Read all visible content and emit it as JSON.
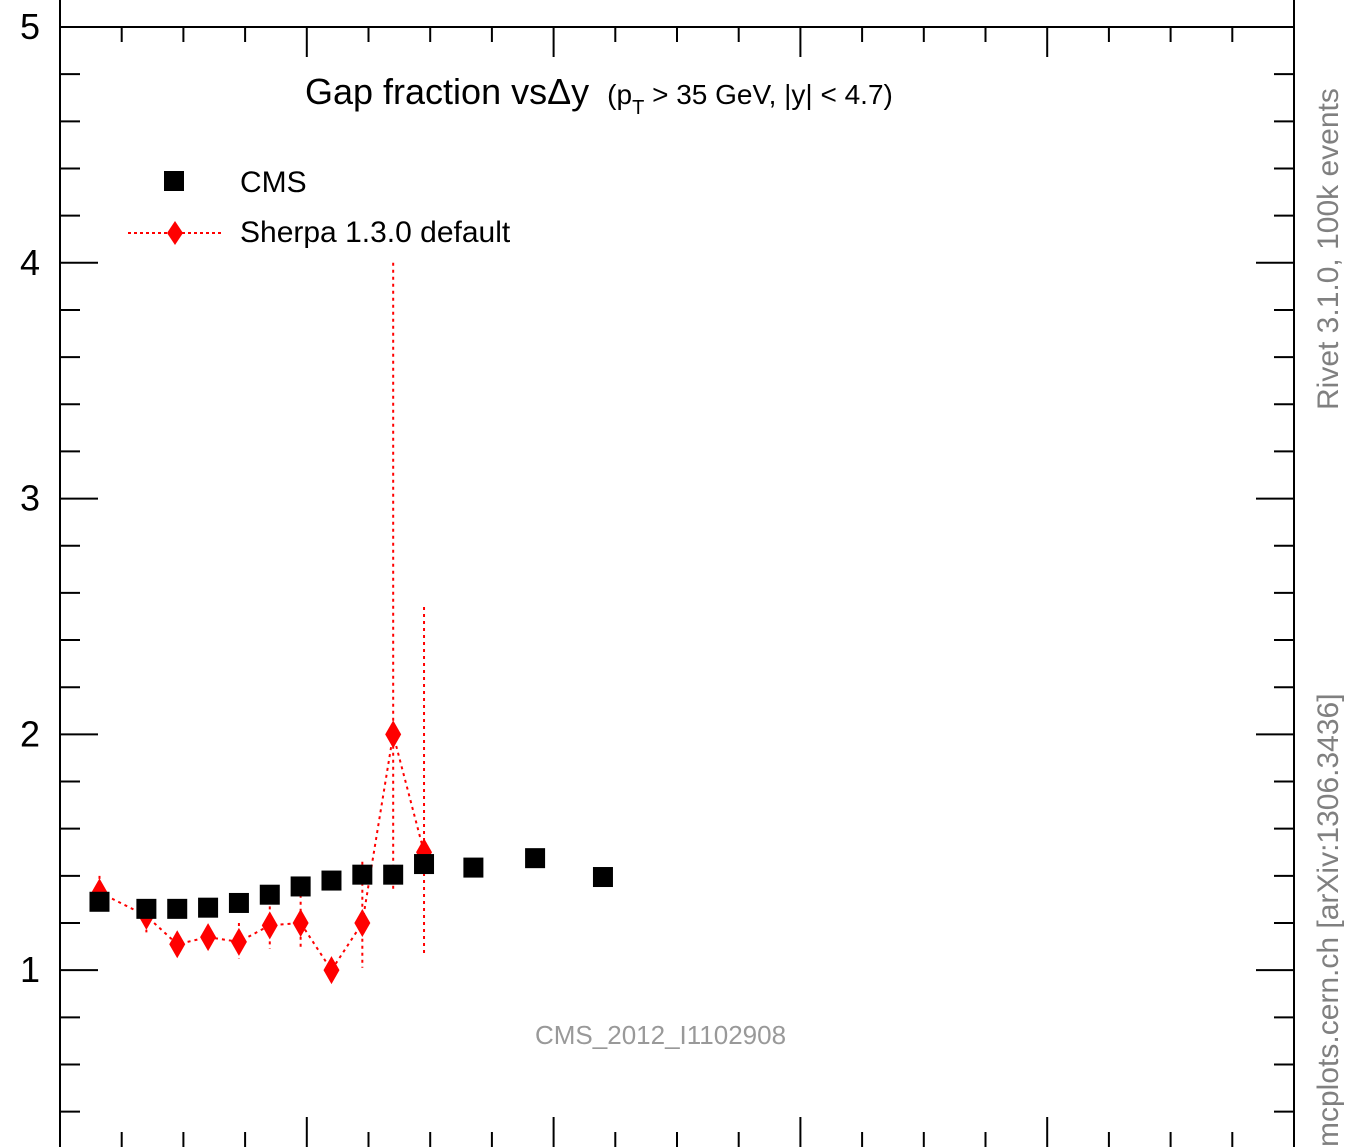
{
  "chart_data": {
    "type": "scatter",
    "title_main": "Gap fraction vs",
    "title_delta_y": "Δy",
    "title_kin_open": "(p",
    "title_kin_sub": "T",
    "title_kin_rest": " > 35 GeV, |y| < 4.7)",
    "ylim": [
      0.25,
      5.0
    ],
    "xlim": [
      0.0,
      10.0
    ],
    "yticks_major": [
      1,
      2,
      3,
      4,
      5
    ],
    "ytick_labels": [
      "1",
      "2",
      "3",
      "4",
      "5"
    ],
    "legend_placement": "top-left",
    "grid": false,
    "series": [
      {
        "name": "CMS",
        "marker": "square",
        "color": "#000000",
        "points": [
          {
            "x": 0.32,
            "y": 1.29
          },
          {
            "x": 0.7,
            "y": 1.26
          },
          {
            "x": 0.95,
            "y": 1.26
          },
          {
            "x": 1.2,
            "y": 1.265
          },
          {
            "x": 1.45,
            "y": 1.285
          },
          {
            "x": 1.7,
            "y": 1.32
          },
          {
            "x": 1.95,
            "y": 1.355
          },
          {
            "x": 2.2,
            "y": 1.38
          },
          {
            "x": 2.45,
            "y": 1.405
          },
          {
            "x": 2.7,
            "y": 1.405
          },
          {
            "x": 2.95,
            "y": 1.45
          },
          {
            "x": 3.35,
            "y": 1.435
          },
          {
            "x": 3.85,
            "y": 1.475
          },
          {
            "x": 4.4,
            "y": 1.395
          }
        ]
      },
      {
        "name": "Sherpa 1.3.0 default",
        "marker": "diamond",
        "color": "#ff0000",
        "points": [
          {
            "x": 0.32,
            "y": 1.33,
            "lo": 1.27,
            "hi": 1.4
          },
          {
            "x": 0.7,
            "y": 1.23,
            "lo": 1.16,
            "hi": 1.29
          },
          {
            "x": 0.95,
            "y": 1.11,
            "lo": 1.07,
            "hi": 1.15
          },
          {
            "x": 1.2,
            "y": 1.14,
            "lo": 1.09,
            "hi": 1.19
          },
          {
            "x": 1.45,
            "y": 1.12,
            "lo": 1.05,
            "hi": 1.2
          },
          {
            "x": 1.7,
            "y": 1.19,
            "lo": 1.09,
            "hi": 1.3
          },
          {
            "x": 1.95,
            "y": 1.2,
            "lo": 1.09,
            "hi": 1.32
          },
          {
            "x": 2.2,
            "y": 1.0,
            "lo": 1.0,
            "hi": 1.0
          },
          {
            "x": 2.45,
            "y": 1.2,
            "lo": 1.01,
            "hi": 1.46
          },
          {
            "x": 2.7,
            "y": 2.0,
            "lo": 1.34,
            "hi": 4.0
          },
          {
            "x": 2.95,
            "y": 1.5,
            "lo": 1.07,
            "hi": 2.54
          }
        ]
      }
    ]
  },
  "side_text": {
    "rivet": "Rivet 3.1.0,  100k events",
    "mcplots": "mcplots.cern.ch [arXiv:1306.3436]"
  },
  "watermark": "CMS_2012_I1102908"
}
